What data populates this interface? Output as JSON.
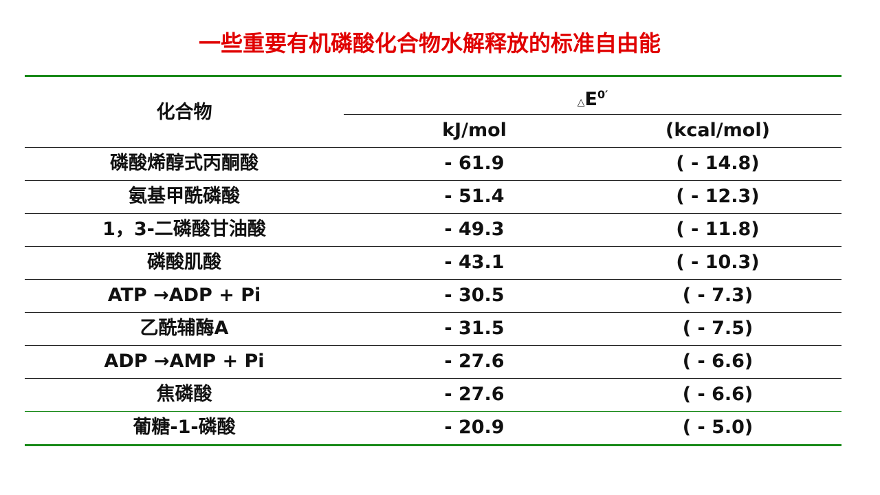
{
  "title": "一些重要有机磷酸化合物水解释放的标准自由能",
  "table": {
    "header": {
      "compound": "化合物",
      "delta": "△",
      "symbol": "E",
      "sup": "0′",
      "unit1": "kJ/mol",
      "unit2": "(kcal/mol)"
    },
    "rows": [
      [
        "磷酸烯醇式丙酮酸",
        "- 61.9",
        "( - 14.8)"
      ],
      [
        "氨基甲酰磷酸",
        "- 51.4",
        "( - 12.3)"
      ],
      [
        "1，3-二磷酸甘油酸",
        "- 49.3",
        "( - 11.8)"
      ],
      [
        "磷酸肌酸",
        "- 43.1",
        "( - 10.3)"
      ],
      [
        "ATP →ADP + Pi",
        "- 30.5",
        "( - 7.3)"
      ],
      [
        "乙酰辅酶A",
        "- 31.5",
        "( - 7.5)"
      ],
      [
        "ADP →AMP + Pi",
        "- 27.6",
        "( - 6.6)"
      ],
      [
        "焦磷酸",
        "- 27.6",
        "( - 6.6)"
      ],
      [
        "葡糖-1-磷酸",
        "- 20.9",
        "( - 5.0)"
      ]
    ]
  }
}
